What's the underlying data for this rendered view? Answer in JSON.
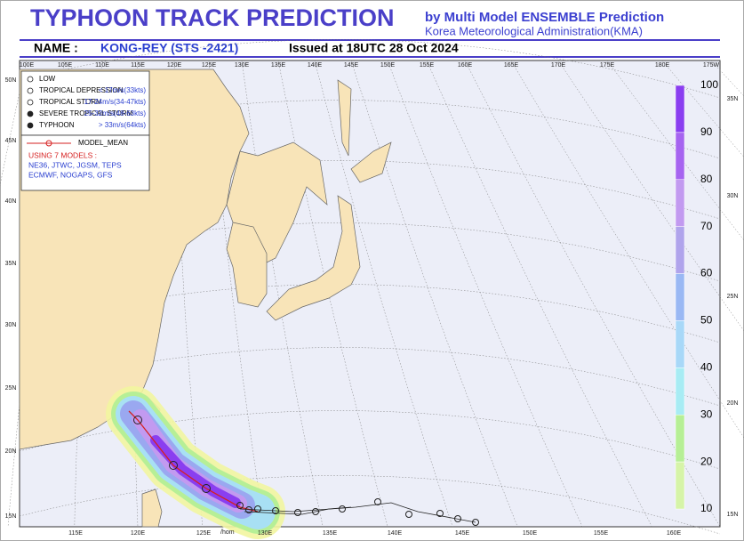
{
  "header": {
    "title": "TYPHOON TRACK PREDICTION",
    "subtitle": "by Multi Model ENSEMBLE Prediction",
    "agency": "Korea Meteorological Administration(KMA)",
    "name_label": "NAME :",
    "name": "KONG-REY (STS -2421)",
    "issued": "Issued at 18UTC 28 Oct 2024"
  },
  "map": {
    "top_lon_labels": [
      "100E",
      "105E",
      "110E",
      "115E",
      "120E",
      "125E",
      "130E",
      "135E",
      "140E",
      "145E",
      "150E",
      "155E",
      "160E",
      "165E",
      "170E",
      "175E",
      "180E",
      "175W"
    ],
    "bottom_lon_labels": [
      "115E",
      "120E",
      "125E",
      "130E",
      "135E",
      "140E",
      "145E",
      "150E",
      "155E",
      "160E"
    ],
    "left_lat_labels": [
      "50N",
      "45N",
      "40N",
      "35N",
      "30N",
      "25N",
      "20N",
      "15N"
    ],
    "right_lat_labels": [
      "35N",
      "30N",
      "25N",
      "20N",
      "15N"
    ],
    "footer_note": "/hom"
  },
  "legend": {
    "items": [
      {
        "label": "LOW",
        "range": null
      },
      {
        "label": "TROPICAL DEPRESSION",
        "range": "< 17m/s(33kts)"
      },
      {
        "label": "TROPICAL STORM",
        "range": "17-24m/s(34-47kts)"
      },
      {
        "label": "SEVERE TROPICAL STORM",
        "range": "25-32m/s(48-63kts)"
      },
      {
        "label": "TYPHOON",
        "range": "> 33m/s(64kts)"
      }
    ],
    "model_mean": "MODEL_MEAN",
    "models_title": "USING 7 MODELS :",
    "models_line1": "NE36, JTWC, JGSM, TEPS",
    "models_line2": "ECMWF, NOGAPS, GFS"
  },
  "colorbar": {
    "labels": [
      "100",
      "90",
      "80",
      "70",
      "60",
      "50",
      "40",
      "30",
      "20",
      "10"
    ]
  }
}
